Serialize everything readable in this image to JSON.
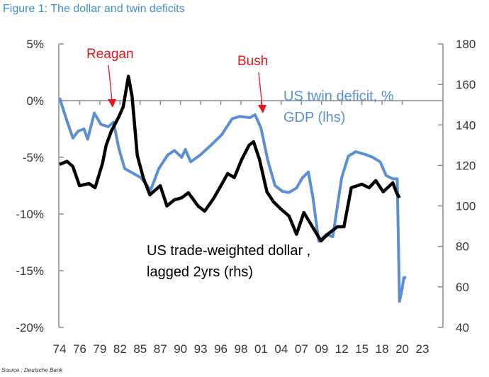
{
  "title": "Figure 1: The dollar and twin deficits",
  "source": "Source : Deutsche Bank",
  "colors": {
    "twin_deficit": "#5b8fd4",
    "dollar": "#000000",
    "annotation": "#e8161b",
    "title": "#3d8fd0"
  },
  "chart_data": {
    "type": "line",
    "title": "Figure 1: The dollar and twin deficits",
    "x_tick_labels": [
      "74",
      "76",
      "79",
      "82",
      "85",
      "87",
      "90",
      "93",
      "96",
      "98",
      "01",
      "04",
      "07",
      "09",
      "12",
      "15",
      "18",
      "20",
      "23"
    ],
    "x_range": [
      1974,
      2023
    ],
    "y_left": {
      "ticks": [
        "5%",
        "0%",
        "-5%",
        "-10%",
        "-15%",
        "-20%"
      ],
      "range": [
        -20,
        5
      ],
      "unit": "%"
    },
    "y_right": {
      "ticks": [
        "180",
        "160",
        "140",
        "120",
        "100",
        "80",
        "60",
        "40"
      ],
      "range": [
        40,
        180
      ]
    },
    "grid": false,
    "series": [
      {
        "name": "US twin deficit, % GDP (lhs)",
        "label_lines": [
          "US twin deficit, %",
          "GDP (lhs)"
        ],
        "axis": "left",
        "color": "#5b8fd4",
        "x": [
          1974,
          1975,
          1975.8,
          1976.5,
          1977.3,
          1977.8,
          1978.7,
          1979.6,
          1980.6,
          1981.3,
          1982,
          1982.8,
          1985,
          1986.3,
          1987.4,
          1988.6,
          1989.5,
          1990.5,
          1991,
          1991.7,
          1993,
          1994.5,
          1995.9,
          1997.3,
          1998.3,
          1999.7,
          2000.4,
          2001.2,
          2002.1,
          2003.1,
          2004.1,
          2005,
          2006,
          2006.8,
          2007.6,
          2008.2,
          2009,
          2010,
          2010.9,
          2012.1,
          2013,
          2014,
          2015.3,
          2016.3,
          2017.3,
          2018.1,
          2019,
          2019.6,
          2019.9,
          2020.2,
          2020.5,
          2020.8
        ],
        "y": [
          0.25,
          -1.8,
          -3.3,
          -2.7,
          -2.5,
          -3.4,
          -1.1,
          -2.1,
          -2.3,
          -1.9,
          -4.2,
          -6,
          -6.8,
          -7.9,
          -6,
          -4.8,
          -4.4,
          -5,
          -4.3,
          -5.4,
          -4.8,
          -3.9,
          -3,
          -1.6,
          -1.4,
          -1.5,
          -1.25,
          -2.4,
          -5.2,
          -7.5,
          -8,
          -8.1,
          -7.7,
          -6.8,
          -6.3,
          -8.5,
          -12.4,
          -11.8,
          -12,
          -6.8,
          -4.9,
          -4.5,
          -4.75,
          -5,
          -5.4,
          -6.6,
          -6.9,
          -6.9,
          -17.7,
          -16.8,
          -15.6,
          -15.6
        ]
      },
      {
        "name": "US trade-weighted dollar , lagged 2yrs (rhs)",
        "label_lines": [
          "US trade-weighted dollar ,",
          "lagged 2yrs (rhs)"
        ],
        "axis": "right",
        "color": "#000000",
        "x": [
          1974,
          1975,
          1975.8,
          1976.7,
          1978,
          1978.8,
          1979.8,
          1980.3,
          1981,
          1982,
          1982.6,
          1983.3,
          1983.8,
          1984.5,
          1985.3,
          1986.2,
          1987.6,
          1988.5,
          1989.5,
          1990.5,
          1991.4,
          1992.7,
          1993.6,
          1994.8,
          1995.9,
          1996.7,
          1997.6,
          1998.6,
          1999.6,
          2000.2,
          2001,
          2002,
          2002.9,
          2003.9,
          2005,
          2006,
          2007,
          2008.1,
          2009.3,
          2010.2,
          2011.5,
          2012.4,
          2013.4,
          2014.8,
          2015.8,
          2016.7,
          2017.7,
          2019,
          2019.5,
          2019.9
        ],
        "y": [
          120.5,
          122,
          119.5,
          110,
          111,
          109,
          121,
          130,
          137,
          144,
          149,
          164,
          154,
          125,
          114,
          105.5,
          110,
          100,
          103,
          104,
          106.5,
          100,
          97.4,
          103.7,
          110.7,
          116,
          114,
          123,
          130,
          131.7,
          123,
          107,
          102,
          98.4,
          95,
          86,
          96.7,
          90,
          82.7,
          86,
          89.7,
          89.7,
          109,
          110.7,
          109,
          112.5,
          107,
          111.4,
          106.5,
          104
        ]
      }
    ],
    "annotations": [
      {
        "text": "Reagan",
        "color": "#e8161b",
        "x": 1981.5
      },
      {
        "text": "Bush",
        "color": "#e8161b",
        "x": 2001
      }
    ]
  }
}
